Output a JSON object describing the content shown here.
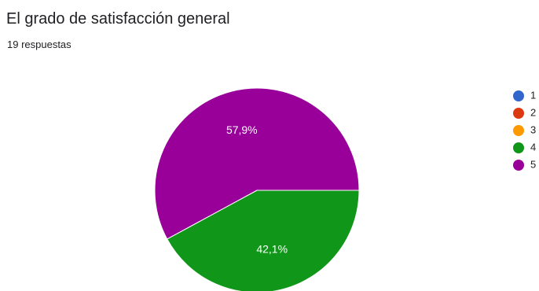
{
  "card": {
    "title": "El grado de satisfacción general",
    "subtitle": "19 respuestas"
  },
  "chart_data": {
    "type": "pie",
    "title": "El grado de satisfacción general",
    "subtitle": "19 respuestas",
    "legend_position": "right",
    "categories": [
      "1",
      "2",
      "3",
      "4",
      "5"
    ],
    "values": [
      0,
      0,
      0,
      42.1,
      57.9
    ],
    "data_labels": [
      "",
      "",
      "",
      "42,1%",
      "57,9%"
    ],
    "colors": [
      "#3366cc",
      "#dc3912",
      "#ff9900",
      "#109618",
      "#990099"
    ]
  }
}
